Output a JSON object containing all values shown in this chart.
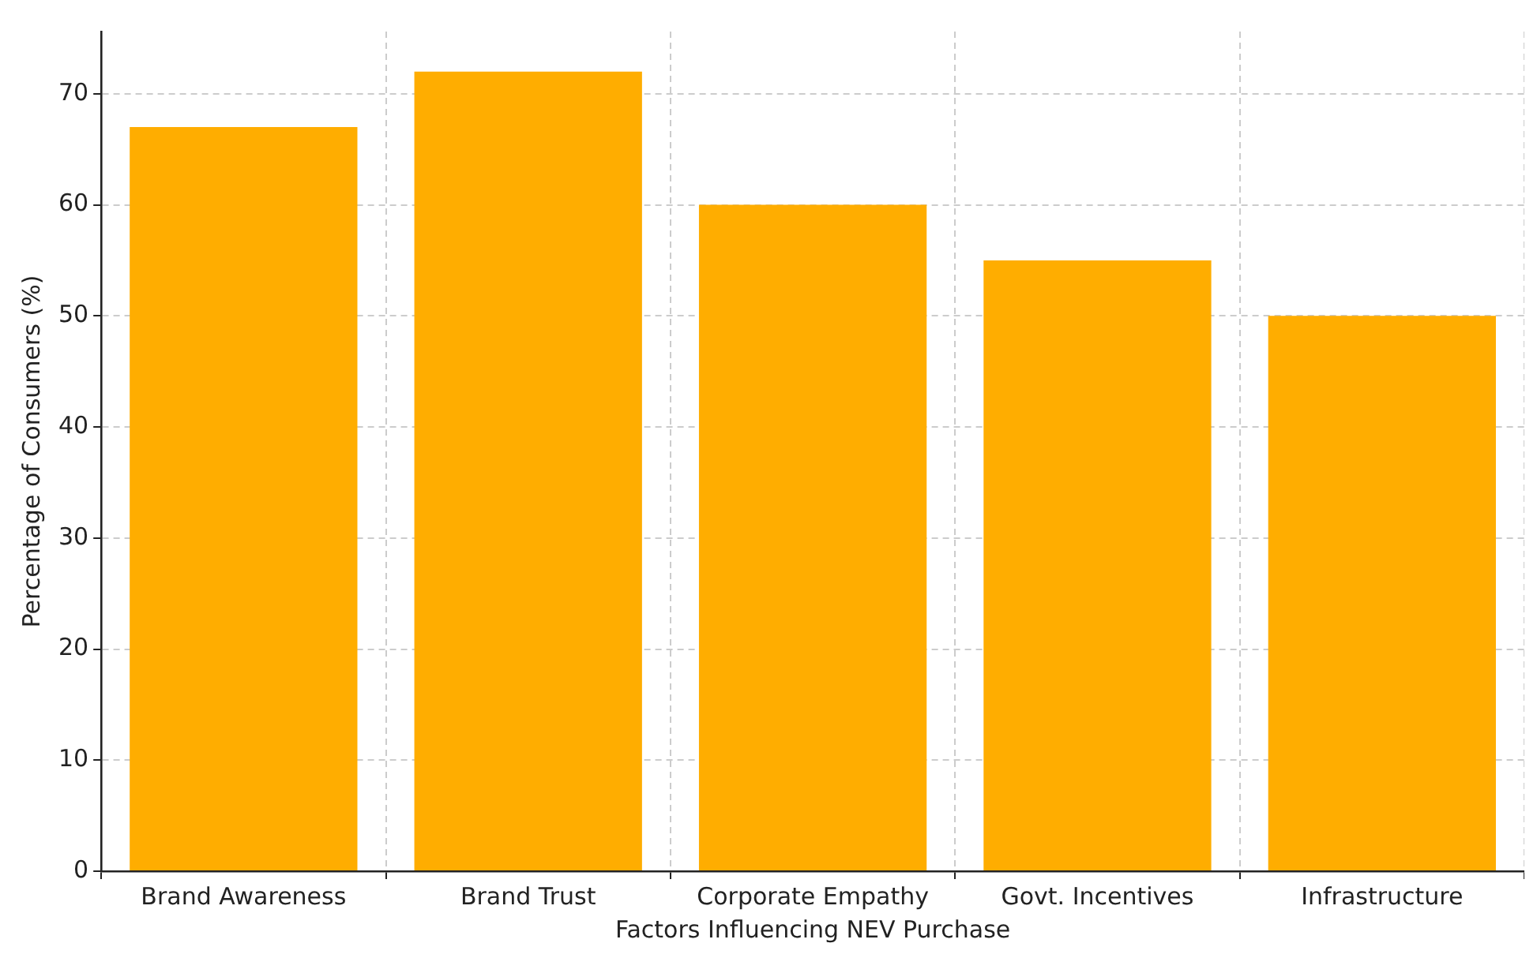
{
  "chart_data": {
    "type": "bar",
    "xlabel": "Factors Influencing NEV Purchase",
    "ylabel": "Percentage of Consumers (%)",
    "categories": [
      "Brand Awareness",
      "Brand Trust",
      "Corporate Empathy",
      "Govt. Incentives",
      "Infrastructure"
    ],
    "values": [
      67,
      72,
      60,
      55,
      50
    ],
    "color": "#ffad00",
    "ylim": [
      0,
      75.6
    ],
    "yticks": [
      0,
      10,
      20,
      30,
      40,
      50,
      60,
      70
    ],
    "grid": true
  }
}
